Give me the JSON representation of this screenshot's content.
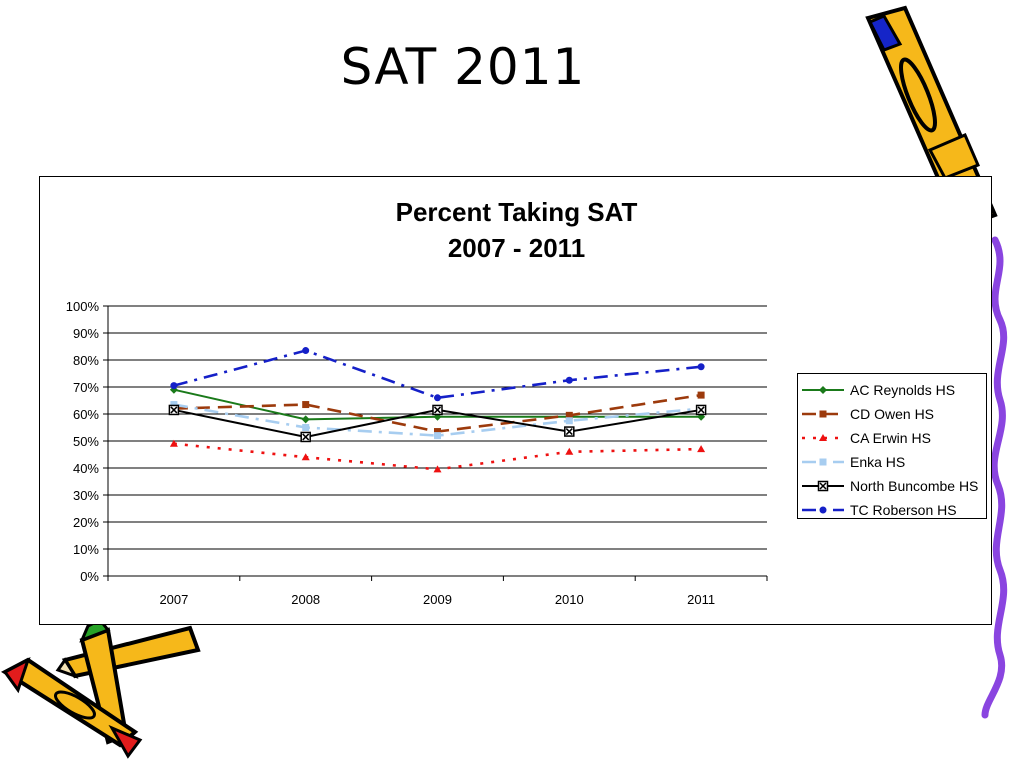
{
  "slide": {
    "title": "SAT 2011"
  },
  "chart_data": {
    "type": "line",
    "title_lines": [
      "Percent Taking SAT",
      "2007 - 2011"
    ],
    "categories": [
      "2007",
      "2008",
      "2009",
      "2010",
      "2011"
    ],
    "ylim": [
      0,
      100
    ],
    "yticks": [
      "0%",
      "10%",
      "20%",
      "30%",
      "40%",
      "50%",
      "60%",
      "70%",
      "80%",
      "90%",
      "100%"
    ],
    "grid": true,
    "legend_position": "right",
    "series": [
      {
        "name": "AC Reynolds HS",
        "values": [
          69,
          58,
          59,
          59,
          59
        ],
        "color": "#1a7a1a",
        "dash": "solid",
        "marker": "diamond"
      },
      {
        "name": "CD Owen HS",
        "values": [
          62,
          63.5,
          53.5,
          59.5,
          67
        ],
        "color": "#9c3a0c",
        "dash": "long-dash",
        "marker": "square"
      },
      {
        "name": "CA Erwin HS",
        "values": [
          49,
          44,
          39.5,
          46,
          47
        ],
        "color": "#ee1111",
        "dash": "dot",
        "marker": "triangle"
      },
      {
        "name": "Enka HS",
        "values": [
          63.5,
          55,
          52,
          57.5,
          62
        ],
        "color": "#a7cdf0",
        "dash": "dash-dot",
        "marker": "square"
      },
      {
        "name": "North Buncombe HS",
        "values": [
          61.5,
          51.5,
          61.5,
          53.5,
          61.5
        ],
        "color": "#000000",
        "dash": "solid",
        "marker": "x-square"
      },
      {
        "name": "TC Roberson HS",
        "values": [
          70.5,
          83.5,
          66,
          72.5,
          77.5
        ],
        "color": "#1520c8",
        "dash": "dash-dot",
        "marker": "circle"
      }
    ]
  }
}
